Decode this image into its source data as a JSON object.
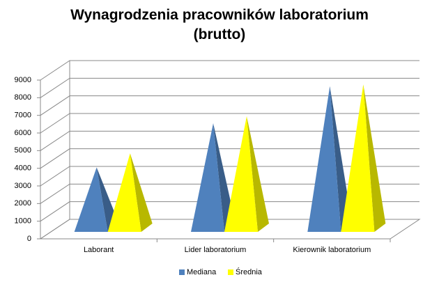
{
  "chart_data": {
    "type": "pyramid3d",
    "title": "Wynagrodzenia pracowników laboratorium (brutto)",
    "categories": [
      "Laborant",
      "Lider laboratorium",
      "Kierownik laboratorium"
    ],
    "series": [
      {
        "name": "Mediana",
        "color": "#4f81bd",
        "values": [
          3500,
          6000,
          8100
        ]
      },
      {
        "name": "Średnia",
        "color": "#ffff00",
        "values": [
          4300,
          6400,
          8200
        ]
      }
    ],
    "ylim": [
      0,
      9000
    ],
    "yticks": [
      0,
      1000,
      2000,
      3000,
      4000,
      5000,
      6000,
      7000,
      8000,
      9000
    ],
    "grid": true,
    "legend": "bottom"
  }
}
